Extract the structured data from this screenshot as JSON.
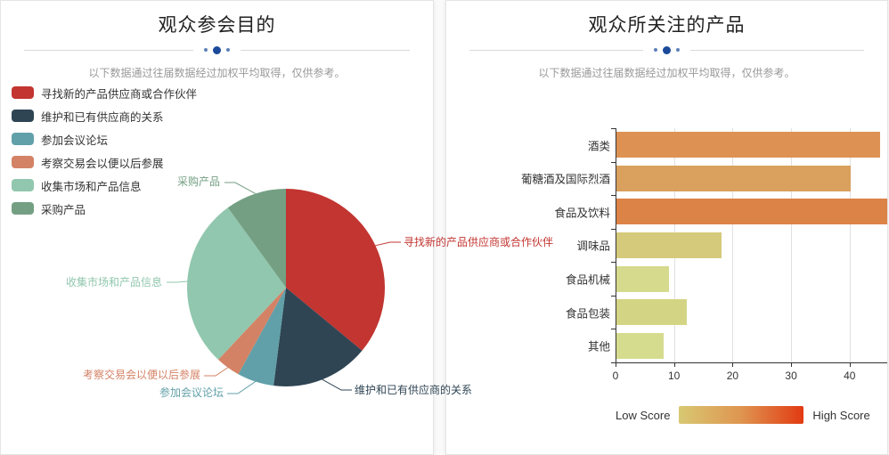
{
  "left_panel": {
    "title": "观众参会目的",
    "subtitle": "以下数据通过往届数据经过加权平均取得，仅供参考。",
    "legend_items": [
      {
        "label": "寻找新的产品供应商或合作伙伴",
        "color": "#c23531"
      },
      {
        "label": "维护和已有供应商的关系",
        "color": "#2f4554"
      },
      {
        "label": "参加会议论坛",
        "color": "#61a0a8"
      },
      {
        "label": "考察交易会以便以后参展",
        "color": "#d48265"
      },
      {
        "label": "收集市场和产品信息",
        "color": "#91c7ae"
      },
      {
        "label": "采购产品",
        "color": "#749f83"
      }
    ]
  },
  "right_panel": {
    "title": "观众所关注的产品",
    "subtitle": "以下数据通过往届数据经过加权平均取得，仅供参考。",
    "visualmap": {
      "low_label": "Low Score",
      "high_label": "High Score",
      "gradient_colors": [
        "#d8c873",
        "#df9550",
        "#e23a12"
      ]
    }
  },
  "accent": {
    "divider_dot_color": "#1b4a9b",
    "divider_line_color": "#d9d9d9",
    "axis_color": "#333333",
    "grid_color": "#e0e0e0",
    "subtitle_color": "#999999"
  },
  "chart_data": [
    {
      "type": "pie",
      "title": "观众参会目的",
      "labels": [
        "寻找新的产品供应商或合作伙伴",
        "维护和已有供应商的关系",
        "参加会议论坛",
        "考察交易会以便以后参展",
        "收集市场和产品信息",
        "采购产品"
      ],
      "values": [
        36,
        16,
        6,
        4,
        28,
        10
      ],
      "value_unit": "percent, estimated from slice angles",
      "colors": [
        "#c23531",
        "#2f4554",
        "#61a0a8",
        "#d48265",
        "#91c7ae",
        "#749f83"
      ],
      "start_angle": "12 o'clock",
      "direction": "clockwise",
      "legend_position": "top-left"
    },
    {
      "type": "bar",
      "orientation": "horizontal",
      "title": "观众所关注的产品",
      "categories": [
        "酒类",
        "葡糖酒及国际烈酒",
        "食品及饮料",
        "调味品",
        "食品机械",
        "食品包装",
        "其他"
      ],
      "values": [
        45,
        40,
        47,
        18,
        9,
        12,
        8
      ],
      "bar_colors": [
        "#dd9254",
        "#d9a05e",
        "#dc8347",
        "#d5ca7b",
        "#d5da8d",
        "#d4d584",
        "#d6dc8e"
      ],
      "x_ticks": [
        0,
        10,
        20,
        30,
        40
      ],
      "xlim": [
        0,
        47
      ],
      "grid": true,
      "note": "食品及饮料 bar is clipped by the right panel edge",
      "color_legend": {
        "type": "gradient",
        "low": "Low Score",
        "high": "High Score"
      }
    }
  ]
}
